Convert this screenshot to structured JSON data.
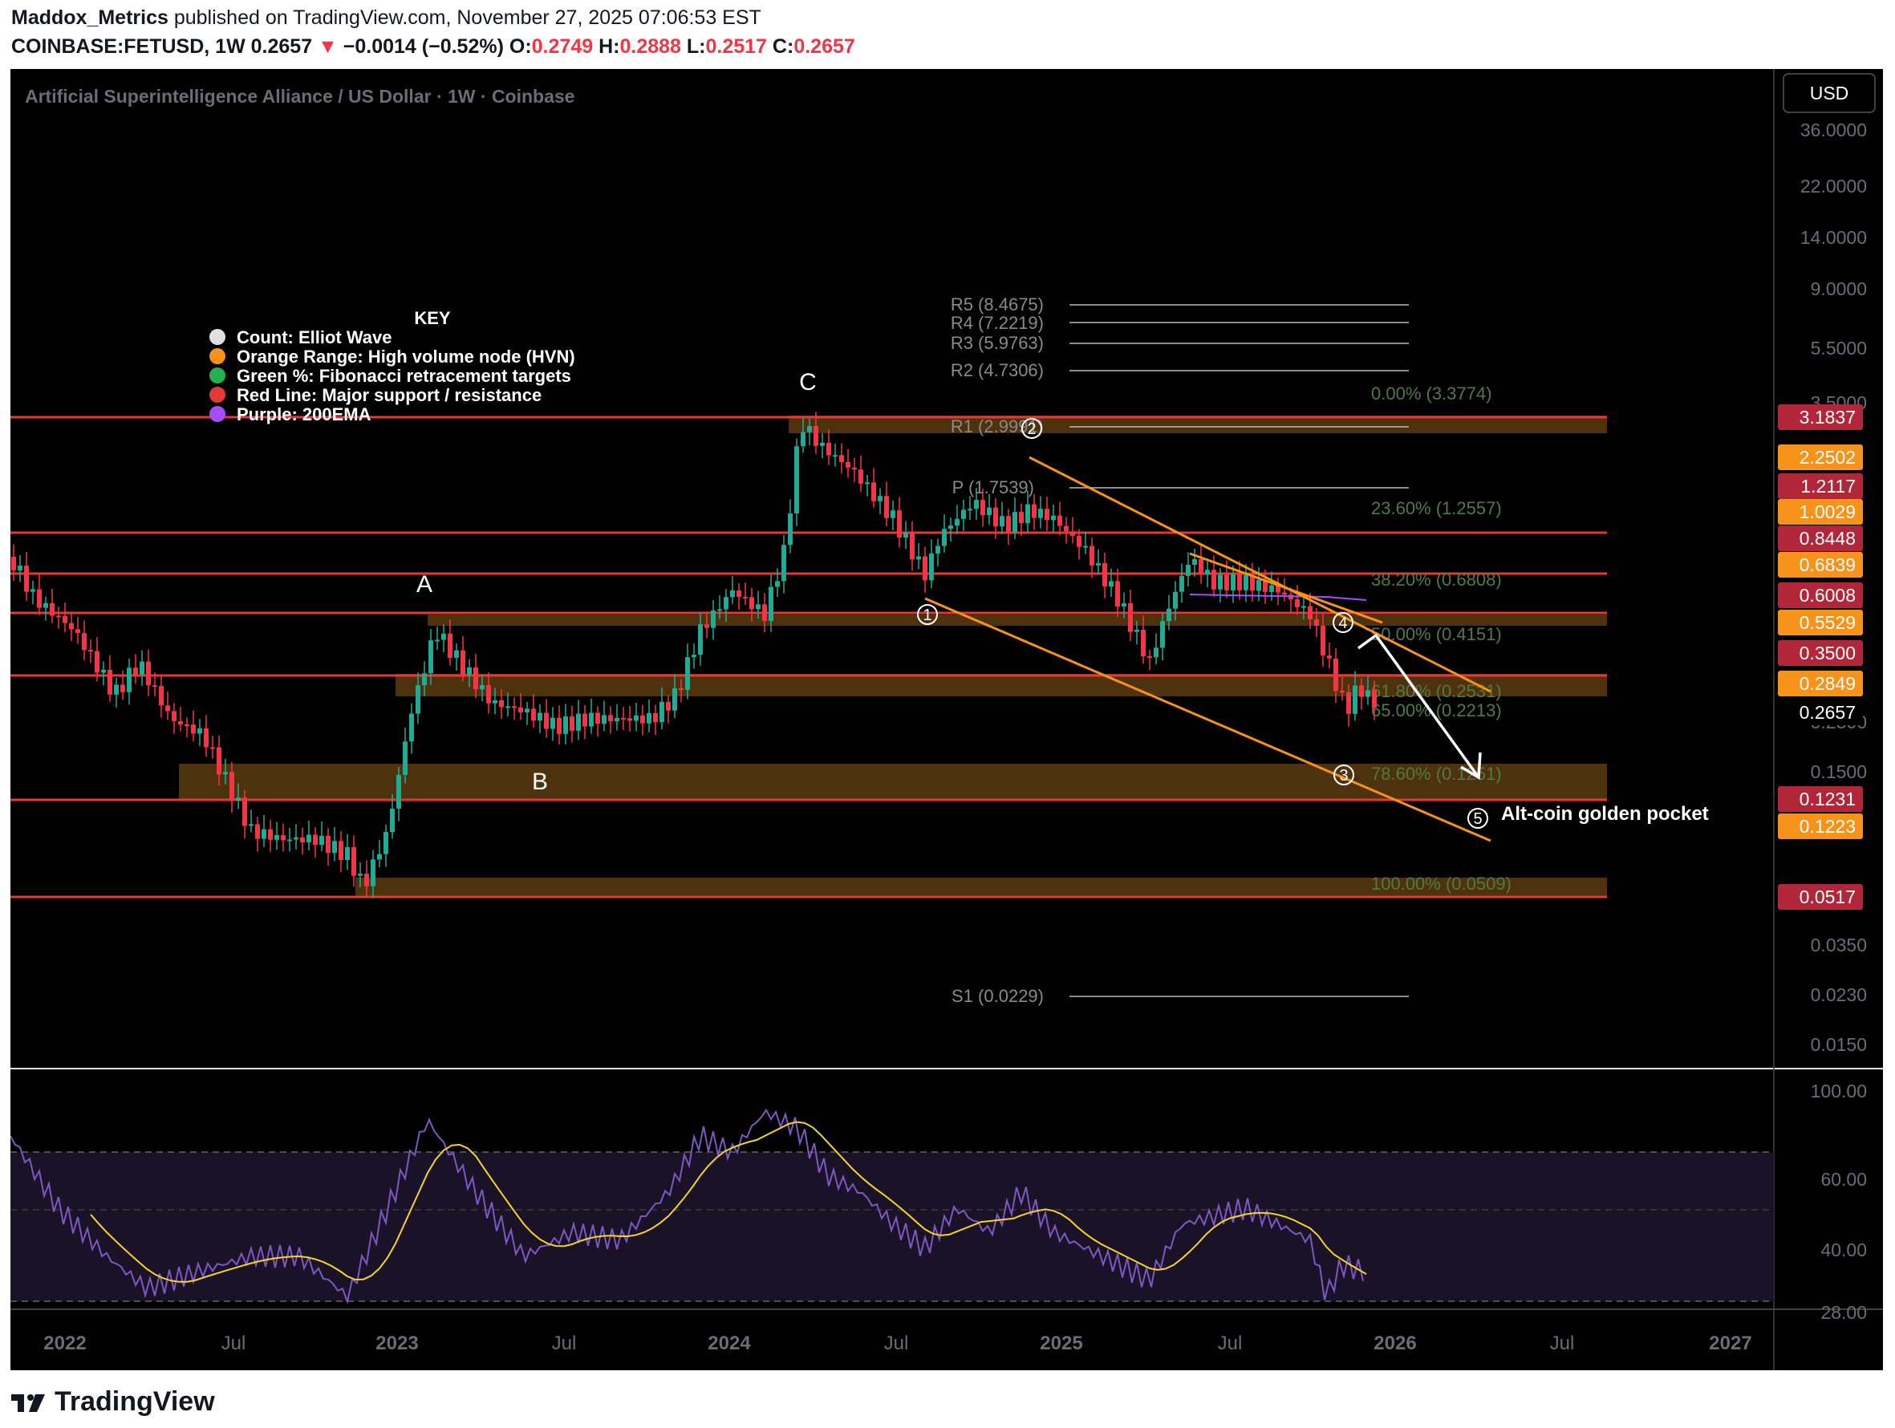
{
  "header": {
    "author": "Maddox_Metrics",
    "published": "published on TradingView.com, November 27, 2025 07:06:53 EST",
    "symbol": "COINBASE:FETUSD, 1W",
    "last": "0.2657",
    "change_arrow": "▼",
    "change": "−0.0014 (−0.52%)",
    "o_label": "O:",
    "o_value": "0.2749",
    "h_label": "H:",
    "h_value": "0.2888",
    "l_label": "L:",
    "l_value": "0.2517",
    "c_label": "C:",
    "c_value": "0.2657"
  },
  "chart": {
    "title": "Artificial Superintelligence Alliance / US Dollar · 1W · Coinbase",
    "currency_button": "USD",
    "price_axis": [
      "36.0000",
      "22.0000",
      "14.0000",
      "9.0000",
      "5.5000",
      "3.5000",
      "0.2300",
      "0.1500",
      "0.0350",
      "0.0230",
      "0.0150"
    ],
    "price_badges": [
      {
        "label": "3.1837",
        "color": "#b2263a"
      },
      {
        "label": "2.2502",
        "color": "#f7931a"
      },
      {
        "label": "1.2117",
        "color": "#b2263a"
      },
      {
        "label": "1.0029",
        "color": "#f7931a"
      },
      {
        "label": "0.8448",
        "color": "#b2263a"
      },
      {
        "label": "0.6839",
        "color": "#f7931a"
      },
      {
        "label": "0.6008",
        "color": "#b2263a"
      },
      {
        "label": "0.5529",
        "color": "#f7931a"
      },
      {
        "label": "0.3500",
        "color": "#b2263a"
      },
      {
        "label": "0.2849",
        "color": "#f7931a"
      },
      {
        "label": "0.2657",
        "color": "#000000"
      },
      {
        "label": "0.1231",
        "color": "#b2263a"
      },
      {
        "label": "0.1223",
        "color": "#f7931a"
      },
      {
        "label": "0.0517",
        "color": "#b2263a"
      }
    ],
    "rsi_axis": [
      "100.00",
      "60.00",
      "40.00",
      "28.00"
    ],
    "time_axis": [
      "2022",
      "Jul",
      "2023",
      "Jul",
      "2024",
      "Jul",
      "2025",
      "Jul",
      "2026",
      "Jul",
      "2027"
    ],
    "key": {
      "title": "KEY",
      "items": [
        {
          "text": "Count: Elliot Wave",
          "color": "#e0e0e0"
        },
        {
          "text": "Orange Range: High volume node (HVN)",
          "color": "#f7931a"
        },
        {
          "text": "Green %: Fibonacci retracement targets",
          "color": "#22b14c"
        },
        {
          "text": "Red Line: Major support / resistance",
          "color": "#e53935"
        },
        {
          "text": "Purple: 200EMA",
          "color": "#a64dff"
        }
      ]
    },
    "pivots": [
      "R5 (8.4675)",
      "R4 (7.2219)",
      "R3 (5.9763)",
      "R2 (4.7306)",
      "R1 (2.9991)",
      "P (1.7539)",
      "S1 (0.0229)"
    ],
    "fibs": [
      "0.00% (3.3774)",
      "23.60% (1.2557)",
      "38.20% (0.6808)",
      "50.00% (0.4151)",
      "61.80% (0.2531)",
      "65.00% (0.2213)",
      "78.60% (0.1251)",
      "100.00% (0.0509)"
    ],
    "wave_labels": [
      "A",
      "B",
      "C"
    ],
    "wave_counts": [
      "1",
      "2",
      "3",
      "4",
      "5"
    ],
    "annotation": "Alt-coin golden pocket",
    "colors": {
      "support": "#e53935",
      "hvn": "#f7931a",
      "fib": "#4f7a45",
      "up": "#22ab94",
      "down": "#f23645",
      "rsi": "#7e57c2",
      "rsi_ma": "#f5d42a"
    }
  },
  "footer": {
    "brand": "TradingView"
  }
}
